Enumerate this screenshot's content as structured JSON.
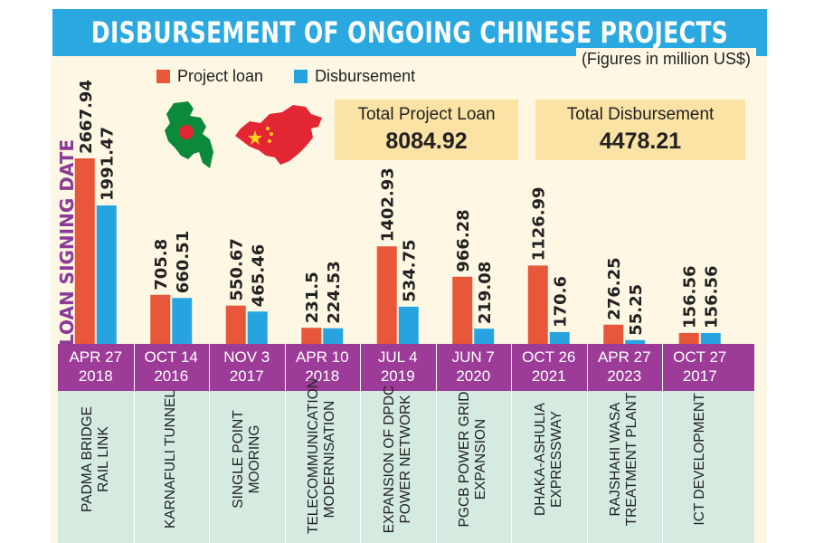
{
  "title": "DISBURSEMENT OF ONGOING CHINESE PROJECTS",
  "subtitle": "(Figures in million US$)",
  "y_axis_label": "LOAN SIGNING DATE",
  "totals": {
    "project_loan_label": "Total Project Loan",
    "project_loan_value": "8084.92",
    "disbursement_label": "Total Disbursement",
    "disbursement_value": "4478.21"
  },
  "colors": {
    "project_loan": "#e8573a",
    "disbursement": "#27a4e0",
    "banner": "#2aa8e0",
    "date_band": "#9c3c98",
    "name_band": "#d5ebdf",
    "ylabel": "#8b3a96"
  },
  "icons": [
    "bangladesh-map-icon",
    "china-map-icon"
  ],
  "chart_data": {
    "type": "bar",
    "title": "DISBURSEMENT OF ONGOING CHINESE PROJECTS",
    "subtitle": "(Figures in million US$)",
    "ylabel": "LOAN SIGNING DATE",
    "categories": [
      "PADMA BRIDGE RAIL LINK",
      "KARNAFULI TUNNEL",
      "SINGLE POINT MOORING",
      "TELECOMMUNICATION MODERNISATION",
      "EXPANSION OF DPDC POWER NETWORK",
      "PGCB POWER GRID EXPANSION",
      "DHAKA-ASHULIA EXPRESSWAY",
      "RAJSHAHI WASA TREATMENT PLANT",
      "ICT DEVELOPMENT"
    ],
    "category_lines": [
      [
        "PADMA BRIDGE",
        "RAIL LINK"
      ],
      [
        "KARNAFULI TUNNEL"
      ],
      [
        "SINGLE POINT",
        "MOORING"
      ],
      [
        "TELECOMMUNICATION",
        "MODERNISATION"
      ],
      [
        "EXPANSION OF DPDC",
        "POWER NETWORK"
      ],
      [
        "PGCB POWER GRID",
        "EXPANSION"
      ],
      [
        "DHAKA-ASHULIA",
        "EXPRESSWAY"
      ],
      [
        "RAJSHAHI WASA",
        "TREATMENT PLANT"
      ],
      [
        "ICT DEVELOPMENT"
      ]
    ],
    "dates": [
      [
        "APR 27",
        "2018"
      ],
      [
        "OCT 14",
        "2016"
      ],
      [
        "NOV 3",
        "2017"
      ],
      [
        "APR 10",
        "2018"
      ],
      [
        "JUL 4",
        "2019"
      ],
      [
        "JUN 7",
        "2020"
      ],
      [
        "OCT 26",
        "2021"
      ],
      [
        "APR 27",
        "2023"
      ],
      [
        "OCT 27",
        "2017"
      ]
    ],
    "series": [
      {
        "name": "Project loan",
        "color": "#e8573a",
        "values": [
          2667.94,
          705.8,
          550.67,
          231.5,
          1402.93,
          966.28,
          1126.99,
          276.25,
          156.56
        ],
        "labels": [
          "2667.94",
          "705.8",
          "550.67",
          "231.5",
          "1402.93",
          "966.28",
          "1126.99",
          "276.25",
          "156.56"
        ]
      },
      {
        "name": "Disbursement",
        "color": "#27a4e0",
        "values": [
          1991.47,
          660.51,
          465.46,
          224.53,
          534.75,
          219.08,
          170.6,
          55.25,
          156.56
        ],
        "labels": [
          "1991.47",
          "660.51",
          "465.46",
          "224.53",
          "534.75",
          "219.08",
          "170.6",
          "55.25",
          "156.56"
        ]
      }
    ],
    "legend": "top-left",
    "grid": false
  }
}
